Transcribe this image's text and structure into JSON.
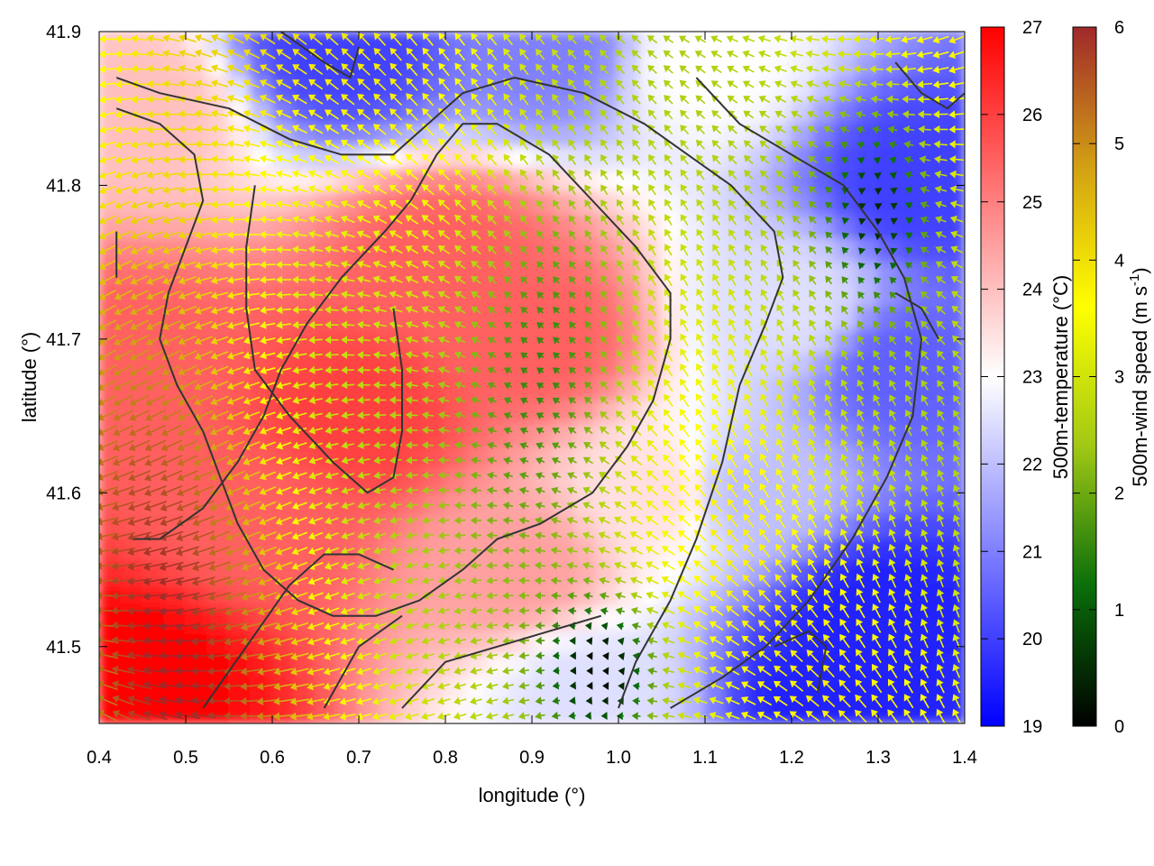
{
  "chart_data": {
    "type": "heatmap",
    "subtype": "temperature field with wind vector arrows and contour lines",
    "xlabel": "longitude (°)",
    "ylabel": "latitude (°)",
    "xlim": [
      0.4,
      1.4
    ],
    "ylim": [
      41.45,
      41.9
    ],
    "x_ticks": [
      "0.4",
      "0.5",
      "0.6",
      "0.7",
      "0.8",
      "0.9",
      "1.0",
      "1.1",
      "1.2",
      "1.3",
      "1.4"
    ],
    "y_ticks": [
      "41.5",
      "41.6",
      "41.7",
      "41.8",
      "41.9"
    ],
    "grid": false,
    "temperature_colorbar": {
      "label": "500m-temperature (°C)",
      "range": [
        19,
        27
      ],
      "ticks": [
        "19",
        "20",
        "21",
        "22",
        "23",
        "24",
        "25",
        "26",
        "27"
      ],
      "colors": [
        "#0000ff",
        "#ffffff",
        "#ff0000"
      ]
    },
    "wind_colorbar": {
      "label_main": "500m-wind speed (m s",
      "label_sup": "-1",
      "label_end": ")",
      "range": [
        0,
        6
      ],
      "ticks": [
        "0",
        "1",
        "2",
        "3",
        "4",
        "5",
        "6"
      ],
      "colors": [
        "#000000",
        "#0a6e0a",
        "#a0c814",
        "#ffff00",
        "#d2a014",
        "#a0282a"
      ]
    },
    "temperature_field_sources": [
      {
        "lon": 0.45,
        "lat": 41.48,
        "t": 27
      },
      {
        "lon": 0.44,
        "lat": 41.68,
        "t": 25.5
      },
      {
        "lon": 0.45,
        "lat": 41.85,
        "t": 24
      },
      {
        "lon": 0.58,
        "lat": 41.58,
        "t": 25.5
      },
      {
        "lon": 0.7,
        "lat": 41.65,
        "t": 26
      },
      {
        "lon": 0.8,
        "lat": 41.75,
        "t": 25.5
      },
      {
        "lon": 0.9,
        "lat": 41.7,
        "t": 25.5
      },
      {
        "lon": 0.88,
        "lat": 41.55,
        "t": 24.5
      },
      {
        "lon": 0.97,
        "lat": 41.47,
        "t": 22.5
      },
      {
        "lon": 1.05,
        "lat": 41.6,
        "t": 23.5
      },
      {
        "lon": 0.68,
        "lat": 41.89,
        "t": 20
      },
      {
        "lon": 0.92,
        "lat": 41.89,
        "t": 21
      },
      {
        "lon": 1.1,
        "lat": 41.88,
        "t": 23
      },
      {
        "lon": 1.2,
        "lat": 41.72,
        "t": 22.5
      },
      {
        "lon": 1.35,
        "lat": 41.8,
        "t": 20
      },
      {
        "lon": 1.33,
        "lat": 41.68,
        "t": 20.5
      },
      {
        "lon": 1.3,
        "lat": 41.52,
        "t": 19.5
      },
      {
        "lon": 1.25,
        "lat": 41.47,
        "t": 19.5
      },
      {
        "lon": 1.15,
        "lat": 41.6,
        "t": 22
      }
    ],
    "contours": [
      [
        [
          0.42,
          41.87
        ],
        [
          0.47,
          41.86
        ],
        [
          0.55,
          41.85
        ],
        [
          0.62,
          41.83
        ],
        [
          0.68,
          41.82
        ],
        [
          0.74,
          41.82
        ],
        [
          0.78,
          41.84
        ],
        [
          0.82,
          41.86
        ],
        [
          0.88,
          41.87
        ],
        [
          0.96,
          41.86
        ],
        [
          1.03,
          41.84
        ],
        [
          1.08,
          41.82
        ],
        [
          1.13,
          41.8
        ],
        [
          1.18,
          41.77
        ],
        [
          1.19,
          41.74
        ],
        [
          1.17,
          41.71
        ],
        [
          1.14,
          41.67
        ],
        [
          1.12,
          41.62
        ],
        [
          1.09,
          41.57
        ],
        [
          1.06,
          41.53
        ],
        [
          1.02,
          41.49
        ],
        [
          1.0,
          41.46
        ]
      ],
      [
        [
          0.42,
          41.85
        ],
        [
          0.47,
          41.84
        ],
        [
          0.51,
          41.82
        ],
        [
          0.52,
          41.79
        ],
        [
          0.5,
          41.76
        ],
        [
          0.48,
          41.73
        ],
        [
          0.47,
          41.7
        ],
        [
          0.49,
          41.67
        ],
        [
          0.52,
          41.64
        ],
        [
          0.54,
          41.61
        ],
        [
          0.56,
          41.58
        ],
        [
          0.59,
          41.55
        ],
        [
          0.63,
          41.53
        ],
        [
          0.67,
          41.52
        ],
        [
          0.72,
          41.52
        ],
        [
          0.77,
          41.53
        ],
        [
          0.82,
          41.55
        ],
        [
          0.86,
          41.57
        ],
        [
          0.91,
          41.58
        ],
        [
          0.97,
          41.6
        ],
        [
          1.01,
          41.63
        ],
        [
          1.04,
          41.66
        ],
        [
          1.06,
          41.7
        ],
        [
          1.06,
          41.73
        ],
        [
          1.02,
          41.76
        ],
        [
          0.97,
          41.79
        ],
        [
          0.92,
          41.82
        ],
        [
          0.86,
          41.84
        ],
        [
          0.82,
          41.84
        ],
        [
          0.79,
          41.82
        ],
        [
          0.76,
          41.79
        ],
        [
          0.73,
          41.77
        ],
        [
          0.68,
          41.74
        ],
        [
          0.64,
          41.71
        ],
        [
          0.61,
          41.68
        ],
        [
          0.59,
          41.65
        ],
        [
          0.56,
          41.62
        ],
        [
          0.52,
          41.59
        ],
        [
          0.47,
          41.57
        ],
        [
          0.44,
          41.57
        ]
      ],
      [
        [
          0.58,
          41.8
        ],
        [
          0.57,
          41.76
        ],
        [
          0.57,
          41.72
        ],
        [
          0.58,
          41.68
        ],
        [
          0.62,
          41.65
        ],
        [
          0.67,
          41.62
        ],
        [
          0.71,
          41.6
        ],
        [
          0.74,
          41.61
        ],
        [
          0.75,
          41.64
        ],
        [
          0.75,
          41.68
        ],
        [
          0.74,
          41.72
        ]
      ],
      [
        [
          1.09,
          41.87
        ],
        [
          1.14,
          41.84
        ],
        [
          1.2,
          41.82
        ],
        [
          1.26,
          41.8
        ],
        [
          1.3,
          41.77
        ],
        [
          1.33,
          41.74
        ],
        [
          1.35,
          41.7
        ],
        [
          1.34,
          41.65
        ],
        [
          1.31,
          41.61
        ],
        [
          1.27,
          41.57
        ],
        [
          1.22,
          41.53
        ],
        [
          1.17,
          41.5
        ],
        [
          1.12,
          41.48
        ],
        [
          1.06,
          41.46
        ]
      ],
      [
        [
          0.61,
          41.9
        ],
        [
          0.66,
          41.88
        ],
        [
          0.69,
          41.87
        ],
        [
          0.7,
          41.89
        ]
      ],
      [
        [
          1.32,
          41.88
        ],
        [
          1.35,
          41.86
        ],
        [
          1.38,
          41.85
        ],
        [
          1.4,
          41.86
        ]
      ],
      [
        [
          1.32,
          41.73
        ],
        [
          1.35,
          41.72
        ],
        [
          1.37,
          41.7
        ]
      ],
      [
        [
          0.52,
          41.46
        ],
        [
          0.57,
          41.5
        ],
        [
          0.62,
          41.54
        ],
        [
          0.66,
          41.56
        ],
        [
          0.7,
          41.56
        ],
        [
          0.74,
          41.55
        ]
      ],
      [
        [
          0.66,
          41.46
        ],
        [
          0.7,
          41.5
        ],
        [
          0.75,
          41.52
        ]
      ],
      [
        [
          0.75,
          41.46
        ],
        [
          0.8,
          41.49
        ],
        [
          0.86,
          41.5
        ],
        [
          0.92,
          41.51
        ],
        [
          0.98,
          41.52
        ]
      ],
      [
        [
          1.18,
          41.5
        ],
        [
          1.22,
          41.51
        ],
        [
          1.24,
          41.5
        ],
        [
          1.23,
          41.47
        ]
      ],
      [
        [
          0.42,
          41.77
        ],
        [
          0.42,
          41.74
        ]
      ]
    ]
  }
}
